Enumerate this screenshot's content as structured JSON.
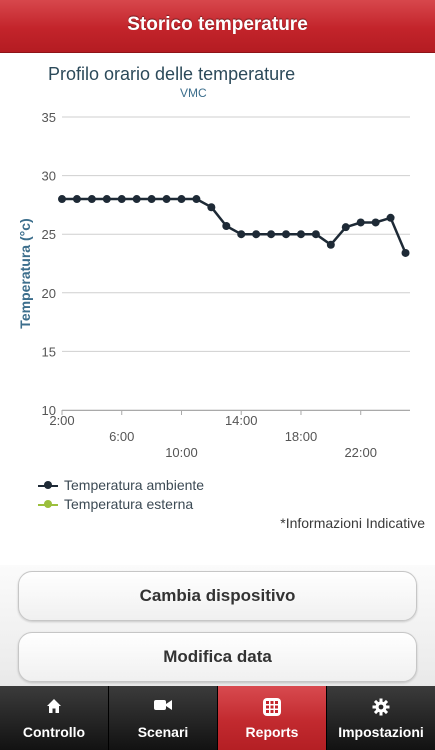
{
  "header": {
    "title": "Storico temperature"
  },
  "chart": {
    "title": "Profilo orario delle temperature",
    "subtitle": "VMC",
    "ylabel": "Temperatura (°c)"
  },
  "chart_data": {
    "type": "line",
    "title": "Profilo orario delle temperature",
    "subtitle": "VMC",
    "xlabel": "",
    "ylabel": "Temperatura (°c)",
    "ylim": [
      10,
      35
    ],
    "yticks": [
      10,
      15,
      20,
      25,
      30,
      35
    ],
    "xlim": [
      2,
      25.3
    ],
    "xticks": [
      {
        "value": 2,
        "label": "2:00"
      },
      {
        "value": 6,
        "label": "6:00"
      },
      {
        "value": 10,
        "label": "10:00"
      },
      {
        "value": 14,
        "label": "14:00"
      },
      {
        "value": 18,
        "label": "18:00"
      },
      {
        "value": 22,
        "label": "22:00"
      }
    ],
    "grid": true,
    "legend": "bottom-left",
    "series": [
      {
        "name": "Temperatura ambiente",
        "color": "#1e2a36",
        "x": [
          2,
          3,
          4,
          5,
          6,
          7,
          8,
          9,
          10,
          11,
          12,
          13,
          14,
          15,
          16,
          17,
          18,
          19,
          20,
          21,
          22,
          23,
          24,
          25
        ],
        "y": [
          28,
          28,
          28,
          28,
          28,
          28,
          28,
          28,
          28,
          28,
          27.3,
          25.7,
          25,
          25,
          25,
          25,
          25,
          25,
          24.1,
          25.6,
          26,
          26,
          26.4,
          23.4
        ]
      },
      {
        "name": "Temperatura esterna",
        "color": "#9bbf3c",
        "x": [],
        "y": []
      }
    ]
  },
  "note": "*Informazioni Indicative",
  "buttons": {
    "change_device": "Cambia dispositivo",
    "change_date": "Modifica data"
  },
  "tabs": [
    {
      "label": "Controllo",
      "icon": "home-icon"
    },
    {
      "label": "Scenari",
      "icon": "video-camera-icon"
    },
    {
      "label": "Reports",
      "icon": "grid-icon"
    },
    {
      "label": "Impostazioni",
      "icon": "gear-icon"
    }
  ],
  "colors": {
    "accent": "#c3242b",
    "tabbar": "#1e1e1e",
    "axis_title": "#3c6e8c"
  }
}
